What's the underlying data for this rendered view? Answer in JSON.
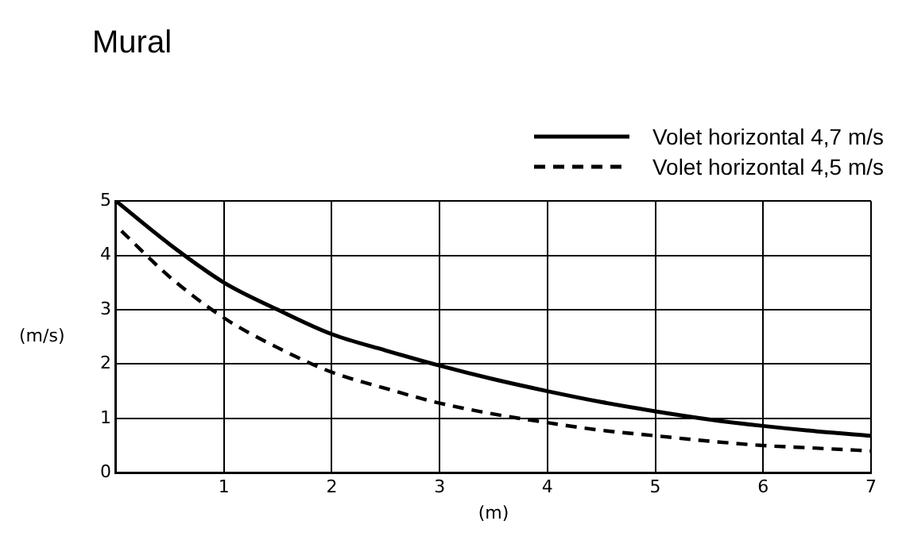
{
  "chart_data": {
    "type": "line",
    "title": "Mural",
    "xlabel": "(m)",
    "ylabel": "(m/s)",
    "xlim": [
      0,
      7
    ],
    "xticks": [
      {
        "value": 0,
        "label": null
      },
      1,
      2,
      3,
      4,
      5,
      6,
      7
    ],
    "ylim": [
      0,
      5
    ],
    "yticks": [
      0,
      1,
      2,
      3,
      4,
      5
    ],
    "grid": true,
    "legend": "top right",
    "marker": "none",
    "series": [
      {
        "name": "Volet horizontal 4,7 m/s",
        "color": "#000000",
        "line_style": "solid",
        "x": [
          0,
          0.5,
          1,
          1.5,
          2,
          2.5,
          3,
          3.5,
          4,
          4.5,
          5,
          5.5,
          6,
          6.5,
          7
        ],
        "values": [
          5.0,
          4.2,
          3.5,
          3.0,
          2.55,
          2.25,
          1.97,
          1.72,
          1.5,
          1.3,
          1.13,
          0.98,
          0.86,
          0.76,
          0.68
        ]
      },
      {
        "name": "Volet horizontal 4,5 m/s",
        "color": "#000000",
        "line_style": "dashed",
        "x": [
          0.05,
          0.5,
          1,
          1.5,
          2,
          2.5,
          3,
          3.5,
          4,
          4.5,
          5,
          5.5,
          6,
          6.5,
          7
        ],
        "values": [
          4.45,
          3.6,
          2.85,
          2.3,
          1.85,
          1.55,
          1.28,
          1.08,
          0.92,
          0.78,
          0.68,
          0.58,
          0.5,
          0.45,
          0.4
        ]
      }
    ]
  }
}
